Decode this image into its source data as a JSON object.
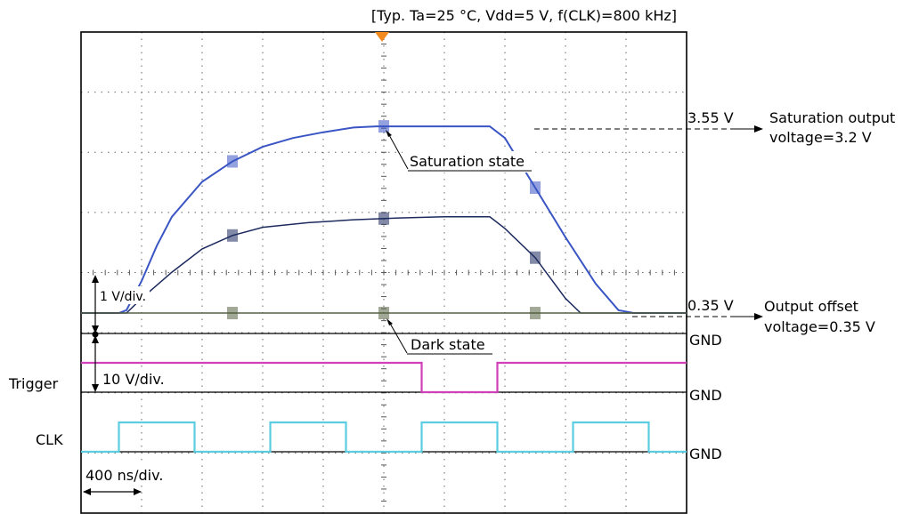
{
  "conditions": "[Typ. Ta=25 °C, Vdd=5 V, f(CLK)=800 kHz]",
  "labels": {
    "saturation_state": "Saturation state",
    "dark_state": "Dark state",
    "v_per_div_1": "1 V/div.",
    "v_per_div_10": "10 V/div.",
    "time_per_div": "400 ns/div.",
    "trigger": "Trigger",
    "clk": "CLK",
    "gnd": "GND",
    "level_355": "3.55 V",
    "level_035": "0.35 V",
    "saturation_output_1": "Saturation output",
    "saturation_output_2": "voltage=3.2 V",
    "output_offset_1": "Output offset",
    "output_offset_2": "voltage=0.35 V"
  },
  "colors": {
    "saturation_trace": "#3a55c4",
    "mid_trace": "#1c2a5e",
    "dark_trace": "#556040",
    "trigger_trace": "#d040b8",
    "clk_trace": "#5ccde0",
    "grid_dots": "#666666"
  },
  "chart_data": {
    "type": "line",
    "title": "[Typ. Ta=25 °C, Vdd=5 V, f(CLK)=800 kHz]",
    "xlabel": "",
    "ylabel": "",
    "x_unit": "ns",
    "xlim": [
      0,
      4000
    ],
    "grid": true,
    "series": [
      {
        "name": "",
        "points": [
          [
            0,
            0.35
          ],
          [
            250,
            0.35
          ],
          [
            300,
            0.4
          ],
          [
            400,
            0.9
          ],
          [
            500,
            1.5
          ],
          [
            600,
            2.0
          ],
          [
            800,
            2.6
          ],
          [
            1000,
            2.95
          ],
          [
            1200,
            3.2
          ],
          [
            1400,
            3.35
          ],
          [
            1600,
            3.45
          ],
          [
            1800,
            3.53
          ],
          [
            1950,
            3.55
          ],
          [
            2200,
            3.55
          ],
          [
            2500,
            3.55
          ],
          [
            2700,
            3.55
          ],
          [
            2800,
            3.35
          ],
          [
            3000,
            2.5
          ],
          [
            3200,
            1.65
          ],
          [
            3400,
            0.85
          ],
          [
            3550,
            0.4
          ],
          [
            3650,
            0.35
          ],
          [
            4000,
            0.35
          ]
        ]
      },
      {
        "name": "",
        "points": [
          [
            0,
            0.35
          ],
          [
            300,
            0.35
          ],
          [
            400,
            0.6
          ],
          [
            600,
            1.05
          ],
          [
            800,
            1.45
          ],
          [
            1000,
            1.68
          ],
          [
            1200,
            1.82
          ],
          [
            1500,
            1.9
          ],
          [
            1800,
            1.95
          ],
          [
            2100,
            1.98
          ],
          [
            2400,
            2.0
          ],
          [
            2700,
            2.0
          ],
          [
            2800,
            1.8
          ],
          [
            3000,
            1.3
          ],
          [
            3200,
            0.6
          ],
          [
            3300,
            0.35
          ],
          [
            4000,
            0.35
          ]
        ]
      },
      {
        "name": "",
        "points": [
          [
            0,
            0.35
          ],
          [
            4000,
            0.35
          ]
        ]
      }
    ],
    "digital": [
      {
        "name": "Trigger",
        "low": "0 V",
        "points": [
          [
            0,
            1
          ],
          [
            2250,
            1
          ],
          [
            2250,
            0
          ],
          [
            2750,
            0
          ],
          [
            2750,
            1
          ],
          [
            4000,
            1
          ]
        ]
      },
      {
        "name": "CLK",
        "points": [
          [
            0,
            0
          ],
          [
            250,
            0
          ],
          [
            250,
            1
          ],
          [
            750,
            1
          ],
          [
            750,
            0
          ],
          [
            1250,
            0
          ],
          [
            1250,
            1
          ],
          [
            1750,
            1
          ],
          [
            1750,
            0
          ],
          [
            2250,
            0
          ],
          [
            2250,
            1
          ],
          [
            2750,
            1
          ],
          [
            2750,
            0
          ],
          [
            3250,
            0
          ],
          [
            3250,
            1
          ],
          [
            3750,
            1
          ],
          [
            3750,
            0
          ],
          [
            4000,
            0
          ]
        ]
      }
    ],
    "annotations": [
      "3.55 V",
      "0.35 V",
      "Saturation output voltage=3.2 V",
      "Output offset voltage=0.35 V",
      "Saturation state",
      "Dark state"
    ]
  }
}
